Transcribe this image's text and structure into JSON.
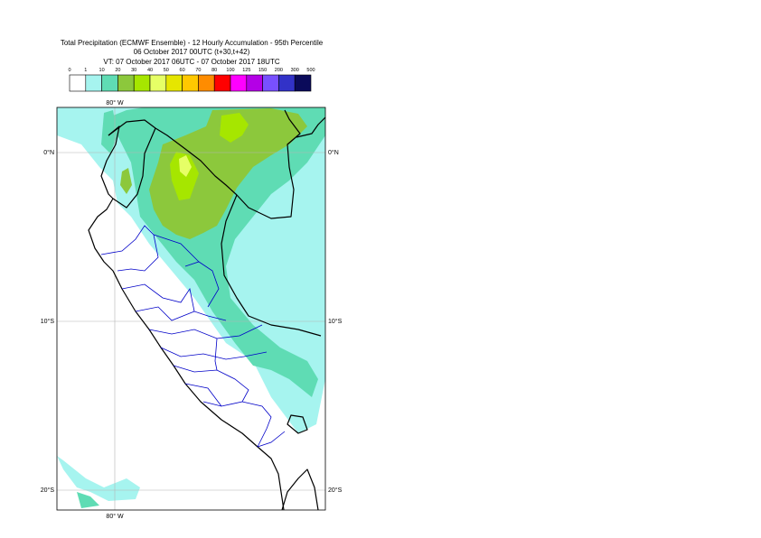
{
  "title": {
    "line1": "Total Precipitation (ECMWF Ensemble) - 12 Hourly Accumulation - 95th Percentile",
    "line2": "06 October 2017 00UTC (t+30,t+42)",
    "line3": "VT: 07 October 2017 06UTC - 07 October 2017 18UTC"
  },
  "legend": {
    "thresholds": [
      "0",
      "1",
      "10",
      "20",
      "30",
      "40",
      "50",
      "60",
      "70",
      "80",
      "100",
      "125",
      "150",
      "200",
      "300",
      "500"
    ],
    "colors": [
      "#ffffff",
      "#a6f4ef",
      "#5fdcb4",
      "#8cc83c",
      "#a6e600",
      "#e6ff66",
      "#e6e600",
      "#ffc800",
      "#ff8c00",
      "#ff0000",
      "#ff00ff",
      "#b400e6",
      "#7850ff",
      "#3232c8",
      "#0a0a5a"
    ]
  },
  "map": {
    "lon_labels": [
      "80° W",
      "80° W"
    ],
    "lat_labels_left": [
      "0°N",
      "10°S",
      "20°S"
    ],
    "lat_labels_right": [
      "0°N",
      "10°S",
      "20°S"
    ]
  }
}
